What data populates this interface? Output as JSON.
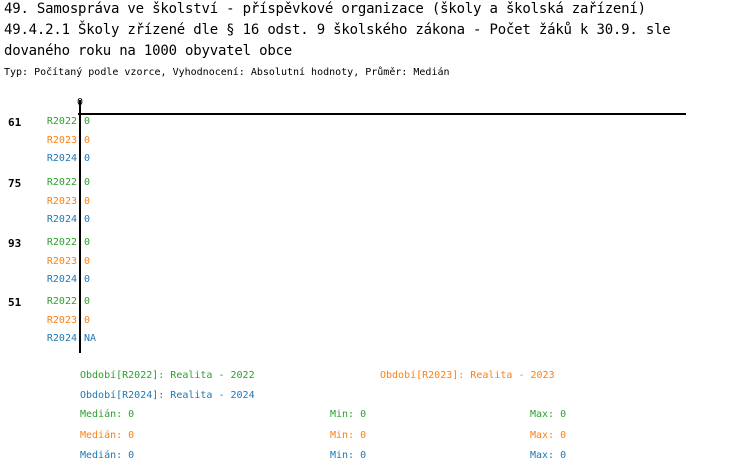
{
  "title_lines": [
    "49. Samospráva ve školství - příspěvkové organizace (školy a školská zařízení)",
    "49.4.2.1 Školy zřízené dle § 16 odst. 9 školského zákona - Počet žáků k 30.9. sle",
    "dovaného roku na 1000 obyvatel obce"
  ],
  "subtitle": "Typ: Počítaný podle vzorce, Vyhodnocení: Absolutní hodnoty, Průměr: Medián",
  "colors": {
    "R2022": "#2ca02c",
    "R2023": "#ff7f0e",
    "R2024": "#1f77b4"
  },
  "chart_data": {
    "type": "bar",
    "orientation": "horizontal",
    "x_tick_labels": [
      "0"
    ],
    "categories": [
      "61",
      "75",
      "93",
      "51"
    ],
    "series": [
      {
        "name": "R2022",
        "values": [
          0,
          0,
          0,
          0
        ],
        "labels": [
          "0",
          "0",
          "0",
          "0"
        ]
      },
      {
        "name": "R2023",
        "values": [
          0,
          0,
          0,
          0
        ],
        "labels": [
          "0",
          "0",
          "0",
          "0"
        ]
      },
      {
        "name": "R2024",
        "values": [
          0,
          0,
          0,
          null
        ],
        "labels": [
          "0",
          "0",
          "0",
          "NA"
        ]
      }
    ]
  },
  "legend": [
    {
      "series": "R2022",
      "text": "Období[R2022]: Realita - 2022"
    },
    {
      "series": "R2023",
      "text": "Období[R2023]: Realita - 2023"
    },
    {
      "series": "R2024",
      "text": "Období[R2024]: Realita - 2024"
    }
  ],
  "stats": [
    {
      "series": "R2022",
      "median": "Medián: 0",
      "min": "Min: 0",
      "max": "Max: 0"
    },
    {
      "series": "R2023",
      "median": "Medián: 0",
      "min": "Min: 0",
      "max": "Max: 0"
    },
    {
      "series": "R2024",
      "median": "Medián: 0",
      "min": "Min: 0",
      "max": "Max: 0"
    }
  ]
}
